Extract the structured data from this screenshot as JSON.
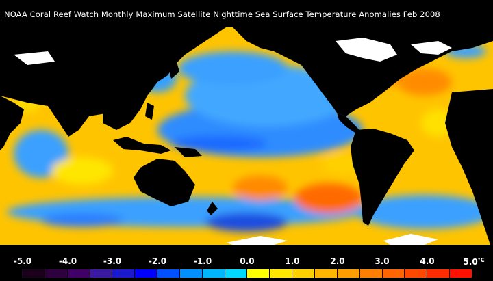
{
  "title": "NOAA Coral Reef Watch Monthly Maximum Satellite Nighttime Sea Surface Temperature Anomalies    Feb 2008",
  "legend": {
    "labels": [
      "-5.0",
      "-4.0",
      "-3.0",
      "-2.0",
      "-1.0",
      "0.0",
      "1.0",
      "2.0",
      "3.0",
      "4.0",
      "5.0"
    ],
    "unit": "°C",
    "colors": [
      "#1a001a",
      "#2e003e",
      "#400066",
      "#3a1aa0",
      "#1a1acc",
      "#0000ff",
      "#0050ff",
      "#0090ff",
      "#00b4ff",
      "#00d8ff",
      "#ffff00",
      "#ffe800",
      "#ffd000",
      "#ffb400",
      "#ff9c00",
      "#ff8000",
      "#ff6400",
      "#ff4800",
      "#ff2c00",
      "#ff1000"
    ]
  },
  "map_palette": {
    "ocean_base": "#ffc400",
    "land": "#000000",
    "ice": "#ffffff",
    "cold": "#3aa0ff",
    "warm": "#ff7a00"
  }
}
